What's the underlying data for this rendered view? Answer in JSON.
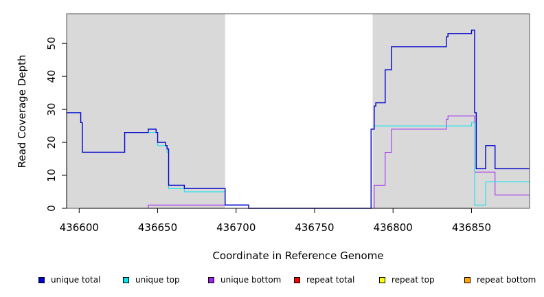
{
  "chart_data": {
    "type": "line",
    "xlabel": "Coordinate in Reference Genome",
    "ylabel": "Read Coverage Depth",
    "xlim": [
      436592,
      436887
    ],
    "ylim": [
      0,
      59
    ],
    "xticks": [
      436600,
      436650,
      436700,
      436750,
      436800,
      436850
    ],
    "yticks": [
      0,
      10,
      20,
      30,
      40,
      50
    ],
    "shaded_regions": [
      [
        436592,
        436693
      ],
      [
        436787,
        436887
      ]
    ],
    "shade_color": "#d9d9d9",
    "legend_position": "bottom",
    "series": [
      {
        "name": "unique total",
        "color": "#0000cd",
        "points": [
          [
            436592,
            29
          ],
          [
            436601,
            29
          ],
          [
            436601,
            26
          ],
          [
            436602,
            26
          ],
          [
            436602,
            17
          ],
          [
            436629,
            17
          ],
          [
            436629,
            23
          ],
          [
            436644,
            23
          ],
          [
            436644,
            24
          ],
          [
            436649,
            24
          ],
          [
            436649,
            23
          ],
          [
            436650,
            23
          ],
          [
            436650,
            20
          ],
          [
            436655,
            20
          ],
          [
            436655,
            19
          ],
          [
            436656,
            19
          ],
          [
            436656,
            18
          ],
          [
            436657,
            18
          ],
          [
            436657,
            7
          ],
          [
            436667,
            7
          ],
          [
            436667,
            6
          ],
          [
            436693,
            6
          ],
          [
            436693,
            1
          ],
          [
            436708,
            1
          ],
          [
            436708,
            0
          ],
          [
            436786,
            0
          ],
          [
            436786,
            24
          ],
          [
            436788,
            24
          ],
          [
            436788,
            31
          ],
          [
            436789,
            31
          ],
          [
            436789,
            32
          ],
          [
            436795,
            32
          ],
          [
            436795,
            42
          ],
          [
            436799,
            42
          ],
          [
            436799,
            49
          ],
          [
            436834,
            49
          ],
          [
            436834,
            52
          ],
          [
            436835,
            52
          ],
          [
            436835,
            53
          ],
          [
            436850,
            53
          ],
          [
            436850,
            54
          ],
          [
            436852,
            54
          ],
          [
            436852,
            29
          ],
          [
            436853,
            29
          ],
          [
            436853,
            12
          ],
          [
            436859,
            12
          ],
          [
            436859,
            19
          ],
          [
            436865,
            19
          ],
          [
            436865,
            12
          ],
          [
            436887,
            12
          ]
        ]
      },
      {
        "name": "unique top",
        "color": "#00e5ee",
        "points": [
          [
            436592,
            29
          ],
          [
            436601,
            29
          ],
          [
            436601,
            26
          ],
          [
            436602,
            26
          ],
          [
            436602,
            17
          ],
          [
            436629,
            17
          ],
          [
            436629,
            23
          ],
          [
            436644,
            23
          ],
          [
            436644,
            23
          ],
          [
            436649,
            23
          ],
          [
            436650,
            23
          ],
          [
            436650,
            19
          ],
          [
            436655,
            19
          ],
          [
            436656,
            19
          ],
          [
            436656,
            17
          ],
          [
            436657,
            17
          ],
          [
            436657,
            6
          ],
          [
            436667,
            6
          ],
          [
            436667,
            5
          ],
          [
            436693,
            5
          ],
          [
            436693,
            1
          ],
          [
            436708,
            1
          ],
          [
            436708,
            0
          ],
          [
            436786,
            0
          ],
          [
            436786,
            24
          ],
          [
            436788,
            24
          ],
          [
            436788,
            25
          ],
          [
            436850,
            25
          ],
          [
            436850,
            26
          ],
          [
            436852,
            26
          ],
          [
            436852,
            1
          ],
          [
            436859,
            1
          ],
          [
            436859,
            8
          ],
          [
            436887,
            8
          ]
        ]
      },
      {
        "name": "unique bottom",
        "color": "#a020f0",
        "points": [
          [
            436592,
            0
          ],
          [
            436644,
            0
          ],
          [
            436644,
            1
          ],
          [
            436693,
            1
          ],
          [
            436693,
            1
          ],
          [
            436708,
            1
          ],
          [
            436708,
            0
          ],
          [
            436788,
            0
          ],
          [
            436788,
            7
          ],
          [
            436795,
            7
          ],
          [
            436795,
            17
          ],
          [
            436799,
            17
          ],
          [
            436799,
            24
          ],
          [
            436834,
            24
          ],
          [
            436834,
            27
          ],
          [
            436835,
            27
          ],
          [
            436835,
            28
          ],
          [
            436852,
            28
          ],
          [
            436852,
            11
          ],
          [
            436865,
            11
          ],
          [
            436865,
            4
          ],
          [
            436887,
            4
          ]
        ]
      },
      {
        "name": "repeat total",
        "color": "#ff0000",
        "points": [
          [
            436592,
            0
          ],
          [
            436887,
            0
          ]
        ]
      },
      {
        "name": "repeat top",
        "color": "#ffff00",
        "points": [
          [
            436592,
            0
          ],
          [
            436887,
            0
          ]
        ]
      },
      {
        "name": "repeat bottom",
        "color": "#ffa500",
        "points": [
          [
            436592,
            0
          ],
          [
            436887,
            0
          ]
        ]
      }
    ]
  }
}
